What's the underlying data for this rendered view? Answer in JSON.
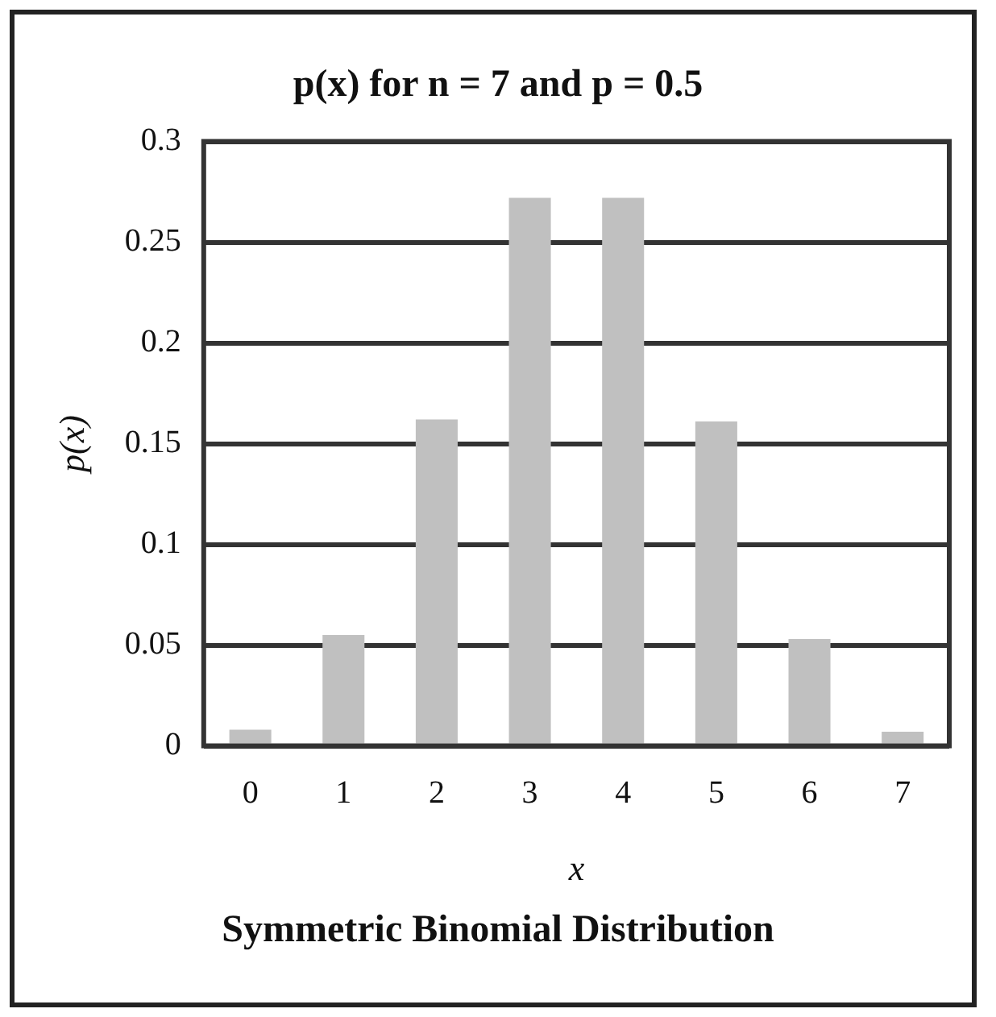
{
  "chart_data": {
    "type": "bar",
    "title": "p(x) for n = 7 and p = 0.5",
    "xlabel": "x",
    "ylabel": "p(x)",
    "categories": [
      "0",
      "1",
      "2",
      "3",
      "4",
      "5",
      "6",
      "7"
    ],
    "values": [
      0.008,
      0.055,
      0.162,
      0.272,
      0.272,
      0.161,
      0.053,
      0.007
    ],
    "color": "#c0c0c0",
    "ylim": [
      0,
      0.3
    ],
    "yticks": [
      0,
      0.05,
      0.1,
      0.15,
      0.2,
      0.25,
      0.3
    ],
    "grid": "y",
    "annotations": [
      "Symmetric Binomial Distribution"
    ]
  }
}
